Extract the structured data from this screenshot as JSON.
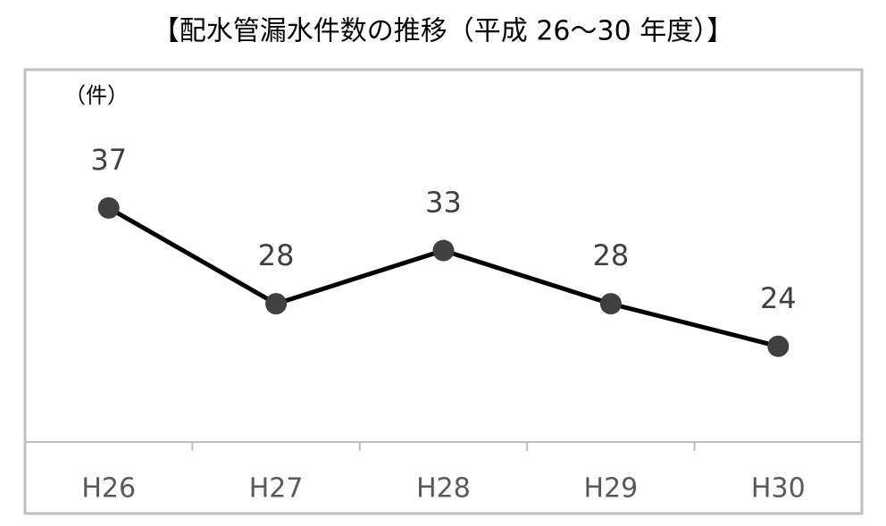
{
  "chart_data": {
    "type": "line",
    "title": "【配水管漏水件数の推移（平成 26～30 年度）】",
    "unit_label": "（件）",
    "categories": [
      "H26",
      "H27",
      "H28",
      "H29",
      "H30"
    ],
    "values": [
      37,
      28,
      33,
      28,
      24
    ],
    "color": "#000000",
    "marker_color": "#404040",
    "ylim": [
      15,
      50
    ]
  }
}
